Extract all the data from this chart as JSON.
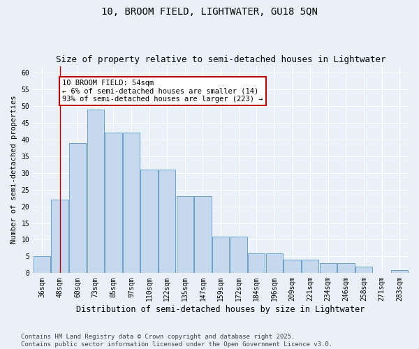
{
  "title": "10, BROOM FIELD, LIGHTWATER, GU18 5QN",
  "subtitle": "Size of property relative to semi-detached houses in Lightwater",
  "xlabel": "Distribution of semi-detached houses by size in Lightwater",
  "ylabel": "Number of semi-detached properties",
  "categories": [
    "36sqm",
    "48sqm",
    "60sqm",
    "73sqm",
    "85sqm",
    "97sqm",
    "110sqm",
    "122sqm",
    "135sqm",
    "147sqm",
    "159sqm",
    "172sqm",
    "184sqm",
    "196sqm",
    "209sqm",
    "221sqm",
    "234sqm",
    "246sqm",
    "258sqm",
    "271sqm",
    "283sqm"
  ],
  "values": [
    5,
    22,
    39,
    49,
    42,
    42,
    31,
    31,
    23,
    23,
    11,
    11,
    6,
    6,
    4,
    4,
    3,
    3,
    2,
    0,
    1
  ],
  "bar_color": "#c5d8ed",
  "bar_edge_color": "#6aa0cc",
  "highlight_bar_index": 1,
  "highlight_color": "#c00000",
  "annotation_text": "10 BROOM FIELD: 54sqm\n← 6% of semi-detached houses are smaller (14)\n93% of semi-detached houses are larger (223) →",
  "annotation_box_color": "#ffffff",
  "annotation_box_edge_color": "#c00000",
  "footer_text": "Contains HM Land Registry data © Crown copyright and database right 2025.\nContains public sector information licensed under the Open Government Licence v3.0.",
  "ylim": [
    0,
    62
  ],
  "yticks": [
    0,
    5,
    10,
    15,
    20,
    25,
    30,
    35,
    40,
    45,
    50,
    55,
    60
  ],
  "bg_color": "#eaf0f8",
  "grid_color": "#ffffff",
  "title_fontsize": 10,
  "subtitle_fontsize": 9,
  "tick_fontsize": 7,
  "ylabel_fontsize": 7.5,
  "xlabel_fontsize": 8.5,
  "footer_fontsize": 6.5,
  "annotation_fontsize": 7.5
}
